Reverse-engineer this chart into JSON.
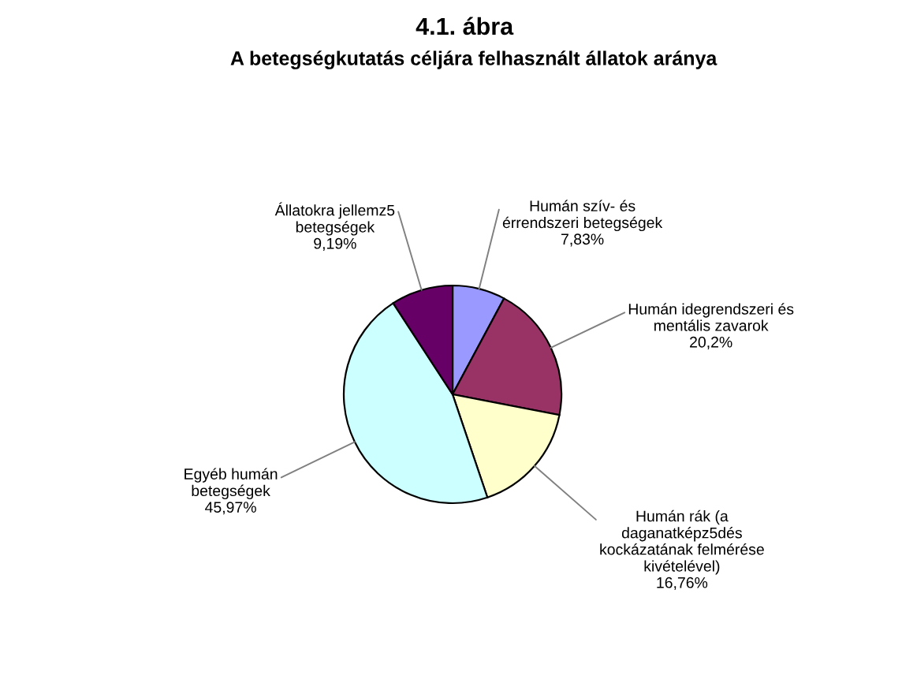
{
  "chart_data": {
    "type": "pie",
    "title": "4.1. ábra",
    "subtitle": "A betegségkutatás céljára felhasznált állatok aránya",
    "categories": [
      "Humán szív- és\nérrendszeri betegségek",
      "Humán idegrendszeri és\nmentális zavarok",
      "Humán rák (a\ndaganatképz5dés\nkockázatának felmérése\nkivételével)",
      "Egyéb humán\nbetegségek",
      "Állatokra jellemz5\nbetegségek"
    ],
    "values": [
      7.83,
      20.2,
      16.76,
      45.97,
      9.19
    ],
    "value_labels": [
      "7,83%",
      "20,2%",
      "16,76%",
      "45,97%",
      "9,19%"
    ],
    "colors": [
      "#9999ff",
      "#993366",
      "#ffffcc",
      "#ccffff",
      "#660066"
    ]
  }
}
